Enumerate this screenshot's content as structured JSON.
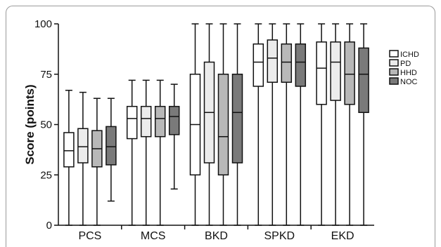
{
  "chart_data": {
    "type": "boxplot",
    "ylabel": "Score (points)",
    "ylim": [
      0,
      100
    ],
    "yticks": [
      0,
      25,
      50,
      75,
      100
    ],
    "categories": [
      "PCS",
      "MCS",
      "BKD",
      "SPKD",
      "EKD"
    ],
    "legend_position": "right",
    "series": [
      {
        "name": "ICHD",
        "color": "#ffffff",
        "boxes": [
          {
            "min": 0,
            "q1": 29,
            "median": 37,
            "q3": 46,
            "max": 67
          },
          {
            "min": 0,
            "q1": 43,
            "median": 53,
            "q3": 59,
            "max": 72
          },
          {
            "min": 0,
            "q1": 25,
            "median": 50,
            "q3": 75,
            "max": 100
          },
          {
            "min": 0,
            "q1": 69,
            "median": 81,
            "q3": 90,
            "max": 100
          },
          {
            "min": 0,
            "q1": 60,
            "median": 78,
            "q3": 91,
            "max": 100
          }
        ]
      },
      {
        "name": "PD",
        "color": "#ececec",
        "boxes": [
          {
            "min": 0,
            "q1": 31,
            "median": 39,
            "q3": 48,
            "max": 66
          },
          {
            "min": 0,
            "q1": 44,
            "median": 53,
            "q3": 59,
            "max": 72
          },
          {
            "min": 0,
            "q1": 31,
            "median": 56,
            "q3": 81,
            "max": 100
          },
          {
            "min": 0,
            "q1": 71,
            "median": 83,
            "q3": 92,
            "max": 100
          },
          {
            "min": 0,
            "q1": 62,
            "median": 81,
            "q3": 91,
            "max": 100
          }
        ]
      },
      {
        "name": "HHD",
        "color": "#b8b8b8",
        "boxes": [
          {
            "min": 0,
            "q1": 29,
            "median": 38,
            "q3": 47,
            "max": 63
          },
          {
            "min": 0,
            "q1": 44,
            "median": 53,
            "q3": 59,
            "max": 72
          },
          {
            "min": 0,
            "q1": 25,
            "median": 44,
            "q3": 75,
            "max": 100
          },
          {
            "min": 0,
            "q1": 71,
            "median": 81,
            "q3": 90,
            "max": 100
          },
          {
            "min": 0,
            "q1": 60,
            "median": 75,
            "q3": 91,
            "max": 100
          }
        ]
      },
      {
        "name": "NOC",
        "color": "#7a7a7a",
        "boxes": [
          {
            "min": 12,
            "q1": 30,
            "median": 39,
            "q3": 49,
            "max": 63
          },
          {
            "min": 18,
            "q1": 45,
            "median": 54,
            "q3": 59,
            "max": 70
          },
          {
            "min": 0,
            "q1": 31,
            "median": 56,
            "q3": 75,
            "max": 100
          },
          {
            "min": 0,
            "q1": 69,
            "median": 81,
            "q3": 90,
            "max": 100
          },
          {
            "min": 0,
            "q1": 56,
            "median": 75,
            "q3": 88,
            "max": 100
          }
        ]
      }
    ]
  }
}
